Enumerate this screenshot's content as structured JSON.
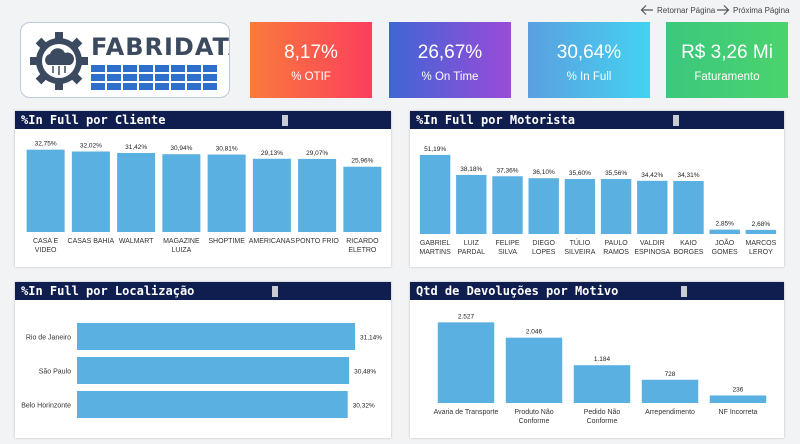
{
  "nav": {
    "back_label": "Retornar Página",
    "next_label": "Próxima Página"
  },
  "logo": {
    "text": "FABRIDATA"
  },
  "kpis": [
    {
      "value": "8,17%",
      "label": "% OTIF",
      "color_from": "#f97b3c",
      "color_to": "#fb3f5c"
    },
    {
      "value": "26,67%",
      "label": "% On Time",
      "color_from": "#3f66d4",
      "color_to": "#9a4bd8"
    },
    {
      "value": "30,64%",
      "label": "% In Full",
      "color_from": "#5b9fe0",
      "color_to": "#44d2f0"
    },
    {
      "value": "R$ 3,26 Mi",
      "label": "Faturamento",
      "color_from": "#3bc77e",
      "color_to": "#4bd36e"
    }
  ],
  "colors": {
    "bar": "#5ab0e0",
    "header": "#0f1e4e"
  },
  "chart_data": [
    {
      "id": "cliente",
      "type": "bar",
      "title": "%In Full por Cliente",
      "categories": [
        [
          "CASA E",
          "VIDEO"
        ],
        [
          "CASAS BAHIA"
        ],
        [
          "WALMART"
        ],
        [
          "MAGAZINE",
          "LUIZA"
        ],
        [
          "SHOPTIME"
        ],
        [
          "AMERICANAS"
        ],
        [
          "PONTO FRIO"
        ],
        [
          "RICARDO",
          "ELETRO"
        ]
      ],
      "values": [
        32.75,
        32.02,
        31.42,
        30.94,
        30.81,
        29.13,
        29.07,
        25.96
      ],
      "labels": [
        "32,75%",
        "32,02%",
        "31,42%",
        "30,94%",
        "30,81%",
        "29,13%",
        "29,07%",
        "25,96%"
      ],
      "ylim": [
        0,
        35
      ]
    },
    {
      "id": "motorista",
      "type": "bar",
      "title": "%In Full por Motorista",
      "categories": [
        [
          "GABRIEL",
          "MARTINS"
        ],
        [
          "LUIZ",
          "PARDAL"
        ],
        [
          "FELIPE",
          "SILVA"
        ],
        [
          "DIEGO",
          "LOPES"
        ],
        [
          "TÚLIO",
          "SILVEIRA"
        ],
        [
          "PAULO",
          "RAMOS"
        ],
        [
          "VALDIR",
          "ESPINOSA"
        ],
        [
          "KAIO",
          "BORGES"
        ],
        [
          "JOÃO",
          "GOMES"
        ],
        [
          "MARCOS",
          "LEROY"
        ]
      ],
      "values": [
        51.19,
        38.18,
        37.36,
        36.1,
        35.6,
        35.56,
        34.42,
        34.31,
        2.85,
        2.68
      ],
      "labels": [
        "51,19%",
        "38,18%",
        "37,36%",
        "36,10%",
        "35,60%",
        "35,56%",
        "34,42%",
        "34,31%",
        "2,85%",
        "2,68%"
      ],
      "ylim": [
        0,
        55
      ]
    },
    {
      "id": "localizacao",
      "type": "barh",
      "title": "%In Full por Localização",
      "categories": [
        "Rio de Janeiro",
        "São Paulo",
        "Belo Horinzonte"
      ],
      "values": [
        31.14,
        30.48,
        30.32
      ],
      "labels": [
        "31,14%",
        "30,48%",
        "30,32%"
      ],
      "xlim": [
        0,
        31.14
      ]
    },
    {
      "id": "devolucoes",
      "type": "bar",
      "title": "Qtd de Devoluções por Motivo",
      "categories": [
        [
          "Avaria de Transporte"
        ],
        [
          "Produto Não",
          "Conforme"
        ],
        [
          "Pedido Não",
          "Conforme"
        ],
        [
          "Arrependimento"
        ],
        [
          "NF Incorreta"
        ]
      ],
      "values": [
        2527,
        2046,
        1184,
        728,
        236
      ],
      "labels": [
        "2.527",
        "2.046",
        "1.184",
        "728",
        "236"
      ],
      "ylim": [
        0,
        2600
      ]
    }
  ]
}
